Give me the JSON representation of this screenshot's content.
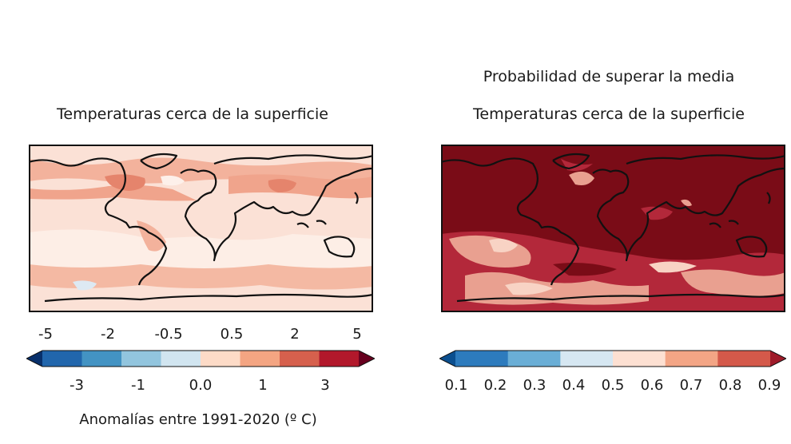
{
  "chart_data": [
    {
      "type": "heatmap",
      "title": "Temperaturas cerca de la superficie",
      "colorbar_label": "Anomalías entre 1991-2020 (º C)",
      "upper_tick_labels": [
        "-5",
        "-2",
        "-0.5",
        "0.5",
        "2",
        "5"
      ],
      "lower_tick_labels": [
        "-3",
        "-1",
        "0.0",
        "1",
        "3"
      ],
      "levels": [
        -5,
        -3,
        -2,
        -1,
        -0.5,
        0.0,
        0.5,
        1,
        2,
        3,
        5
      ],
      "colors": [
        "#08306b",
        "#2166ac",
        "#4393c3",
        "#92c5de",
        "#d1e5f0",
        "#fddbc7",
        "#f4a582",
        "#d6604d",
        "#b2182b",
        "#67001f"
      ],
      "extend": "both"
    },
    {
      "type": "heatmap",
      "suptitle": "Probabilidad de superar la media",
      "title": "Temperaturas cerca de la superficie",
      "tick_labels": [
        "0.1",
        "0.2",
        "0.3",
        "0.4",
        "0.5",
        "0.6",
        "0.7",
        "0.8",
        "0.9"
      ],
      "levels": [
        0.1,
        0.2,
        0.3,
        0.4,
        0.5,
        0.6,
        0.7,
        0.8,
        0.9
      ],
      "colors": [
        "#0b4f8f",
        "#2d7bbd",
        "#6aaed6",
        "#d6e7f2",
        "#fde0d2",
        "#f3a585",
        "#d4594a",
        "#9e1b2a"
      ],
      "extend": "both"
    }
  ],
  "palette": {
    "left_background": "#fbe1d6",
    "left_warm": "#f0a48c",
    "left_warmer": "#e5846c",
    "left_pale": "#fdf0ea",
    "left_cool": "#dde9f3",
    "right_background": "#7a0c17",
    "right_mid": "#b3283a",
    "right_light": "#e9a090",
    "right_pale": "#f8d3c4",
    "coast": "#111111"
  }
}
